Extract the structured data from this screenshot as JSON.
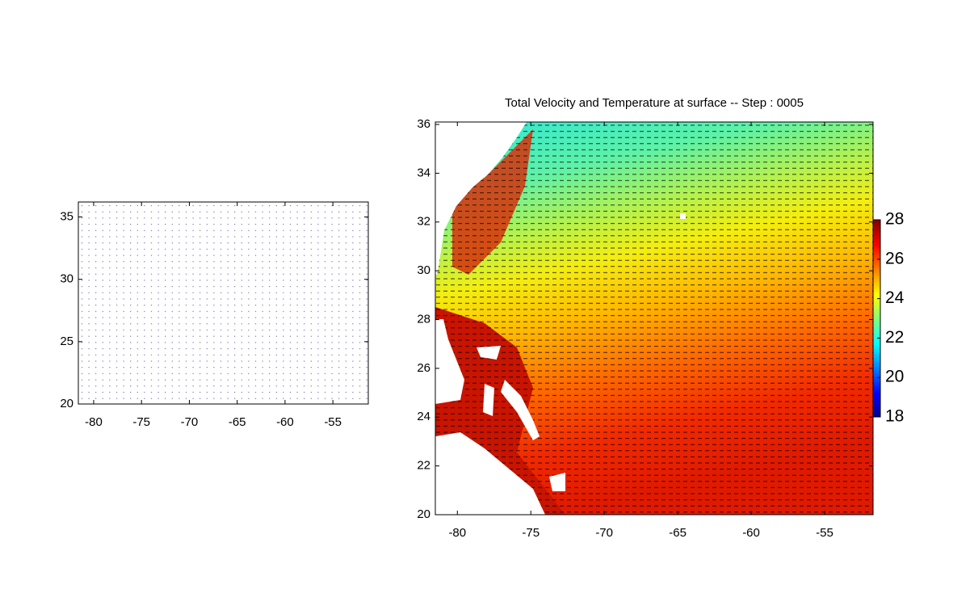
{
  "chart_data": [
    {
      "type": "quiver",
      "xlim": [
        -81.6,
        -51.3
      ],
      "ylim": [
        20,
        36.2
      ],
      "xticks": [
        -80,
        -75,
        -70,
        -65,
        -60,
        -55
      ],
      "yticks": [
        20,
        25,
        30,
        35
      ]
    },
    {
      "type": "heatmap",
      "title": "Total Velocity and Temperature at surface -- Step : 0005",
      "xlim": [
        -81.5,
        -51.7
      ],
      "ylim": [
        20,
        36.1
      ],
      "xticks": [
        -80,
        -75,
        -70,
        -65,
        -60,
        -55
      ],
      "yticks": [
        20,
        22,
        24,
        26,
        28,
        30,
        32,
        34,
        36
      ],
      "colorbar": {
        "clim": [
          18,
          28
        ],
        "ticks": [
          18,
          20,
          22,
          24,
          26,
          28
        ]
      }
    }
  ]
}
